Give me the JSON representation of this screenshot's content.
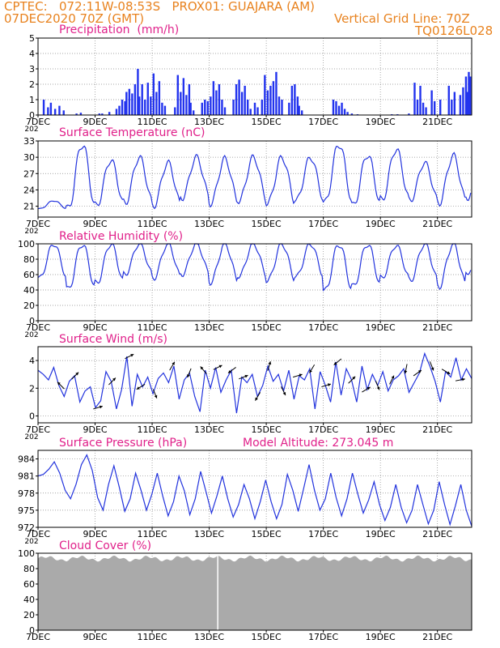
{
  "header": {
    "line1": "CPTEC:   072:11W-08:53S   PROX01: GUAJARA (AM)",
    "line2_left": "07DEC2020 70Z (GMT)",
    "line2_right": "Vertical Grid Line: 70Z",
    "line3_right": "TQ0126L028"
  },
  "x_ticks": [
    "7DEC",
    "9DEC",
    "11DEC",
    "13DEC",
    "15DEC",
    "17DEC",
    "19DEC",
    "21DEC"
  ],
  "x_tick_days": [
    0,
    2,
    4,
    6,
    8,
    10,
    12,
    14
  ],
  "x_under_label": "202",
  "colors": {
    "header": "#e8821e",
    "title": "#e0208a",
    "line": "#2233dd",
    "bar": "#2233ee",
    "cloud": "#aaaaaa"
  },
  "chart_data": [
    {
      "type": "bar",
      "title": "Precipitation  (mm/h)",
      "ylim": [
        0,
        5
      ],
      "yticks": [
        0,
        1,
        2,
        3,
        4,
        5
      ],
      "xlim_days": [
        0,
        15.2
      ],
      "bars": [
        [
          0.2,
          1.0
        ],
        [
          0.35,
          0.5
        ],
        [
          0.45,
          0.8
        ],
        [
          0.6,
          0.4
        ],
        [
          0.75,
          0.6
        ],
        [
          0.9,
          0.3
        ],
        [
          1.35,
          0.1
        ],
        [
          1.5,
          0.15
        ],
        [
          2.15,
          0.1
        ],
        [
          2.25,
          0.1
        ],
        [
          2.5,
          0.2
        ],
        [
          2.75,
          0.4
        ],
        [
          2.85,
          0.6
        ],
        [
          2.95,
          1.0
        ],
        [
          3.05,
          0.9
        ],
        [
          3.1,
          1.5
        ],
        [
          3.2,
          1.7
        ],
        [
          3.3,
          1.4
        ],
        [
          3.4,
          2.0
        ],
        [
          3.5,
          3.0
        ],
        [
          3.55,
          1.2
        ],
        [
          3.65,
          2.0
        ],
        [
          3.75,
          1.0
        ],
        [
          3.85,
          2.1
        ],
        [
          3.95,
          1.2
        ],
        [
          4.05,
          2.7
        ],
        [
          4.15,
          1.5
        ],
        [
          4.25,
          2.2
        ],
        [
          4.35,
          0.8
        ],
        [
          4.45,
          0.6
        ],
        [
          4.8,
          0.5
        ],
        [
          4.9,
          2.6
        ],
        [
          5.0,
          1.5
        ],
        [
          5.1,
          2.4
        ],
        [
          5.2,
          1.3
        ],
        [
          5.3,
          2.0
        ],
        [
          5.35,
          0.8
        ],
        [
          5.45,
          0.3
        ],
        [
          5.75,
          0.8
        ],
        [
          5.85,
          1.0
        ],
        [
          5.95,
          0.9
        ],
        [
          6.05,
          1.2
        ],
        [
          6.15,
          2.2
        ],
        [
          6.25,
          1.6
        ],
        [
          6.35,
          2.0
        ],
        [
          6.45,
          1.0
        ],
        [
          6.55,
          0.5
        ],
        [
          6.85,
          1.0
        ],
        [
          6.95,
          2.0
        ],
        [
          7.05,
          2.3
        ],
        [
          7.15,
          1.5
        ],
        [
          7.25,
          1.9
        ],
        [
          7.35,
          1.0
        ],
        [
          7.45,
          0.4
        ],
        [
          7.6,
          0.8
        ],
        [
          7.7,
          0.5
        ],
        [
          7.85,
          1.0
        ],
        [
          7.95,
          2.6
        ],
        [
          8.05,
          1.6
        ],
        [
          8.15,
          1.9
        ],
        [
          8.25,
          2.2
        ],
        [
          8.35,
          2.8
        ],
        [
          8.45,
          1.2
        ],
        [
          8.55,
          1.0
        ],
        [
          8.8,
          0.8
        ],
        [
          8.9,
          1.9
        ],
        [
          9.0,
          2.0
        ],
        [
          9.1,
          1.2
        ],
        [
          9.15,
          0.6
        ],
        [
          9.25,
          0.3
        ],
        [
          10.35,
          1.0
        ],
        [
          10.45,
          0.9
        ],
        [
          10.55,
          0.6
        ],
        [
          10.65,
          0.8
        ],
        [
          10.75,
          0.4
        ],
        [
          10.85,
          0.2
        ],
        [
          11.0,
          0.1
        ],
        [
          11.2,
          0.05
        ],
        [
          12.4,
          0.05
        ],
        [
          12.6,
          0.05
        ],
        [
          13.0,
          0.1
        ],
        [
          13.2,
          2.1
        ],
        [
          13.3,
          1.0
        ],
        [
          13.4,
          1.9
        ],
        [
          13.5,
          0.8
        ],
        [
          13.6,
          0.5
        ],
        [
          13.8,
          1.6
        ],
        [
          13.9,
          0.9
        ],
        [
          14.1,
          1.0
        ],
        [
          14.4,
          1.9
        ],
        [
          14.5,
          1.0
        ],
        [
          14.6,
          1.5
        ],
        [
          14.8,
          1.3
        ],
        [
          14.9,
          1.8
        ],
        [
          15.0,
          2.5
        ],
        [
          15.05,
          1.5
        ],
        [
          15.1,
          2.8
        ],
        [
          15.15,
          2.5
        ]
      ]
    },
    {
      "type": "line",
      "title": "Surface Temperature (nC)",
      "ylim": [
        19,
        33
      ],
      "yticks": [
        21,
        24,
        27,
        30,
        33
      ],
      "daily_max": [
        22,
        32.5,
        29.5,
        30,
        29,
        30,
        29.7,
        30,
        30,
        30,
        32.5,
        30.5,
        31.5,
        29,
        30.3,
        29.5
      ],
      "daily_min": [
        20.5,
        20.3,
        21,
        21.5,
        21,
        22.5,
        21.5,
        22,
        21.5,
        22,
        21.5,
        21,
        22,
        22,
        21.5,
        22.5
      ]
    },
    {
      "type": "line",
      "title": "Relative Humidity (%)",
      "ylim": [
        0,
        100
      ],
      "yticks": [
        0,
        20,
        40,
        60,
        80,
        100
      ],
      "daily_max": [
        100,
        100,
        100,
        100,
        100,
        100,
        100,
        100,
        100,
        100,
        100,
        100,
        98,
        100,
        100,
        90
      ],
      "daily_min": [
        55,
        40,
        48,
        60,
        55,
        60,
        50,
        58,
        52,
        57,
        38,
        44,
        55,
        52,
        44,
        62
      ]
    },
    {
      "type": "line",
      "title": "Surface Wind (m/s)",
      "ylim": [
        -0.5,
        5
      ],
      "yticks": [
        0,
        2,
        4
      ],
      "series_values": [
        3.3,
        3.0,
        2.6,
        3.5,
        2.2,
        1.4,
        2.5,
        2.9,
        1.0,
        1.8,
        2.1,
        0.6,
        1.1,
        3.2,
        2.5,
        0.5,
        1.9,
        4.3,
        0.7,
        3.0,
        2.1,
        2.8,
        1.6,
        2.7,
        3.1,
        2.4,
        3.6,
        1.2,
        2.6,
        3.1,
        1.4,
        0.3,
        3.3,
        2.0,
        3.5,
        1.7,
        2.6,
        3.3,
        0.2,
        2.8,
        2.4,
        3.0,
        1.4,
        2.2,
        3.6,
        2.5,
        3.0,
        1.8,
        3.3,
        1.2,
        2.9,
        2.6,
        3.4,
        0.5,
        3.2,
        2.2,
        1.0,
        3.9,
        1.5,
        3.4,
        2.6,
        1.0,
        3.6,
        1.9,
        3.0,
        2.2,
        3.2,
        1.8,
        2.6,
        2.9,
        3.4,
        1.7,
        2.4,
        3.1,
        4.5,
        3.6,
        2.5,
        1.0,
        3.2,
        2.8,
        4.2,
        2.6,
        3.4,
        2.7
      ],
      "arrows": [
        [
          0.8,
          -1,
          1
        ],
        [
          1.3,
          1,
          1
        ],
        [
          2.1,
          1,
          0.3
        ],
        [
          2.6,
          1,
          1
        ],
        [
          3.2,
          1,
          0.5
        ],
        [
          3.6,
          -1,
          -0.6
        ],
        [
          4.1,
          0.4,
          -1
        ],
        [
          4.7,
          0.6,
          1
        ],
        [
          5.3,
          -0.4,
          -1
        ],
        [
          5.8,
          -0.5,
          0.6
        ],
        [
          6.3,
          1,
          0.5
        ],
        [
          6.8,
          -0.8,
          -0.6
        ],
        [
          7.2,
          1,
          0.4
        ],
        [
          7.7,
          -0.6,
          -1
        ],
        [
          8.1,
          0.3,
          1
        ],
        [
          8.6,
          0.5,
          -1
        ],
        [
          9.1,
          1,
          0.3
        ],
        [
          9.6,
          -0.6,
          -1
        ],
        [
          10.1,
          1,
          0.3
        ],
        [
          10.5,
          -0.6,
          -0.5
        ],
        [
          11.0,
          1,
          1
        ],
        [
          11.5,
          1,
          0.6
        ],
        [
          11.9,
          0.4,
          -1
        ],
        [
          12.4,
          0.5,
          1
        ],
        [
          12.9,
          -0.2,
          -1
        ],
        [
          13.3,
          1,
          0.7
        ],
        [
          13.8,
          0.4,
          -1
        ],
        [
          14.3,
          1,
          -0.6
        ],
        [
          14.8,
          1,
          0.2
        ]
      ]
    },
    {
      "type": "line",
      "title": "Surface Pressure (hPa)",
      "subtitle": "Model Altitude: 273.045 m",
      "ylim": [
        972,
        985.5
      ],
      "yticks": [
        972,
        975,
        978,
        981,
        984
      ],
      "series_values": [
        981,
        981.3,
        982.2,
        983.5,
        981.5,
        978.5,
        977,
        979.5,
        983,
        984.7,
        982,
        977.2,
        975,
        979.5,
        982.8,
        979,
        974.8,
        977,
        981.5,
        978.5,
        975,
        977.8,
        981.5,
        977.5,
        974,
        976.5,
        981,
        978.4,
        974.2,
        977,
        981.8,
        978.2,
        974.5,
        977.5,
        981,
        977,
        973.8,
        976,
        979.5,
        977,
        973.5,
        976.5,
        980.3,
        976.5,
        973.5,
        976,
        981.3,
        978.5,
        974.8,
        978.8,
        983,
        978.5,
        975,
        977,
        981.5,
        977.2,
        974,
        977,
        981.5,
        977.8,
        974.5,
        976.8,
        980,
        976,
        973.2,
        975.5,
        979.5,
        975.5,
        972.8,
        975,
        979.5,
        976,
        972.6,
        975,
        980,
        976,
        972.5,
        975.8,
        979.5,
        975,
        972.2
      ],
      "labels": {
        "subtitle_key": "Model Altitude: 273.045 m"
      }
    },
    {
      "type": "area",
      "title": "Cloud Cover (%)",
      "ylim": [
        0,
        100
      ],
      "yticks": [
        0,
        20,
        40,
        60,
        80,
        100
      ],
      "typical_value": 93,
      "gap_day": 6.3
    }
  ]
}
